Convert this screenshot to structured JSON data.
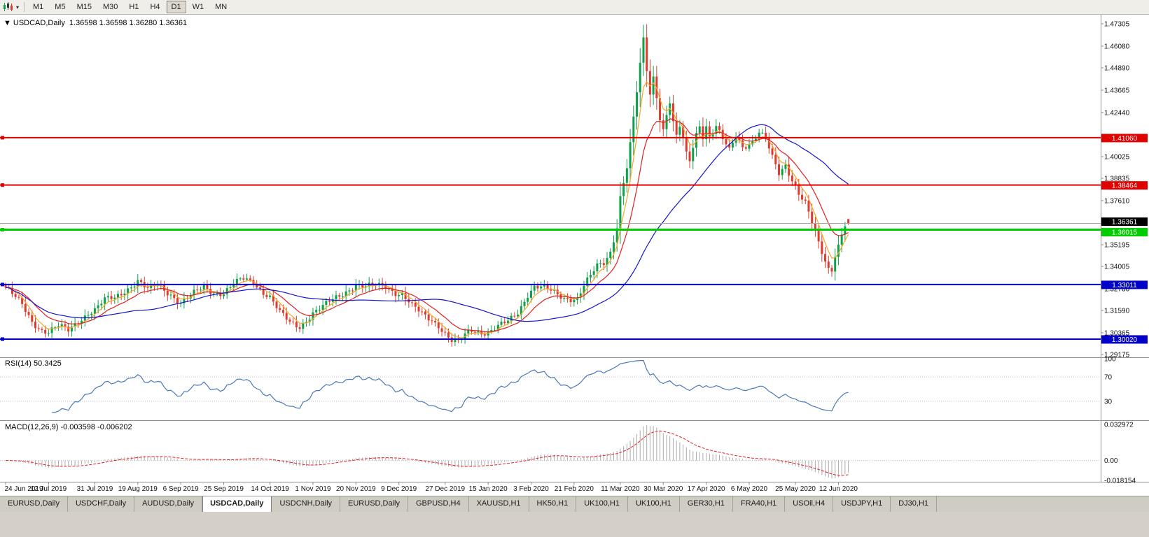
{
  "toolbar": {
    "chart_icon": "candlestick-chart-icon",
    "dropdown_icon": "chevron-down-icon",
    "timeframes": [
      "M1",
      "M5",
      "M15",
      "M30",
      "H1",
      "H4",
      "D1",
      "W1",
      "MN"
    ],
    "active_timeframe": "D1"
  },
  "chart": {
    "collapse_glyph": "▼",
    "symbol_title": "USDCAD,Daily",
    "ohlc_text": "1.36598 1.36598 1.36280 1.36361"
  },
  "price_axis": {
    "ticks": [
      "1.47305",
      "1.46080",
      "1.44890",
      "1.43665",
      "1.42440",
      "1.40025",
      "1.38835",
      "1.37610",
      "1.35195",
      "1.34005",
      "1.32780",
      "1.31590",
      "1.30365",
      "1.29175"
    ]
  },
  "rsi_panel": {
    "label": "RSI(14) 50.3425",
    "levels": [
      {
        "label": "100",
        "value": 100,
        "dotted": false
      },
      {
        "label": "70",
        "value": 70,
        "dotted": true
      },
      {
        "label": "30",
        "value": 30,
        "dotted": true
      }
    ]
  },
  "macd_panel": {
    "label": "MACD(12,26,9) -0.003598 -0.006202",
    "axis": [
      {
        "label": "0.032972",
        "value": 0.032972
      },
      {
        "label": "0.00",
        "value": 0.0
      },
      {
        "label": "-0.018154",
        "value": -0.018154
      }
    ]
  },
  "date_axis": {
    "labels": [
      "24 Jun 2019",
      "12 Jul 2019",
      "31 Jul 2019",
      "19 Aug 2019",
      "6 Sep 2019",
      "25 Sep 2019",
      "14 Oct 2019",
      "1 Nov 2019",
      "20 Nov 2019",
      "9 Dec 2019",
      "27 Dec 2019",
      "15 Jan 2020",
      "3 Feb 2020",
      "21 Feb 2020",
      "11 Mar 2020",
      "30 Mar 2020",
      "17 Apr 2020",
      "6 May 2020",
      "25 May 2020",
      "12 Jun 2020"
    ]
  },
  "tabs": {
    "items": [
      "EURUSD,Daily",
      "USDCHF,Daily",
      "AUDUSD,Daily",
      "USDCAD,Daily",
      "USDCNH,Daily",
      "EURUSD,Daily",
      "GBPUSD,H4",
      "XAUUSD,H1",
      "HK50,H1",
      "UK100,H1",
      "UK100,H1",
      "GER30,H1",
      "FRA40,H1",
      "USOil,H4",
      "USDJPY,H1",
      "DJ30,H1"
    ],
    "active_index": 3
  },
  "colors": {
    "up": "#0FA04A",
    "down": "#E03A2F",
    "bid_line": "#A8A8A8",
    "axis_line": "#909090",
    "dotted_level": "#BDBDBD",
    "ma_fast": "#F5A623",
    "ma_medium": "#E02020",
    "ma_slow": "#1414CC",
    "rsi_line": "#4878B8",
    "macd_hist": "#ABABAB",
    "macd_signal": "#E02020"
  },
  "chart_data": {
    "type": "candlestick",
    "symbol": "USDCAD",
    "timeframe": "Daily",
    "current_ohlc": {
      "open": 1.36598,
      "high": 1.36598,
      "low": 1.3628,
      "close": 1.36361
    },
    "current_price": {
      "value": 1.36361,
      "label": "1.36361",
      "badge_color": "#000000"
    },
    "y_range": [
      1.29175,
      1.47305
    ],
    "num_candles": 256,
    "x_labels": [
      "24 Jun 2019",
      "12 Jul 2019",
      "31 Jul 2019",
      "19 Aug 2019",
      "6 Sep 2019",
      "25 Sep 2019",
      "14 Oct 2019",
      "1 Nov 2019",
      "20 Nov 2019",
      "9 Dec 2019",
      "27 Dec 2019",
      "15 Jan 2020",
      "3 Feb 2020",
      "21 Feb 2020",
      "11 Mar 2020",
      "30 Mar 2020",
      "17 Apr 2020",
      "6 May 2020",
      "25 May 2020",
      "12 Jun 2020"
    ],
    "close_waypoints": [
      [
        0,
        1.3285
      ],
      [
        2,
        1.3245
      ],
      [
        5,
        1.3185
      ],
      [
        8,
        1.31
      ],
      [
        11,
        1.3055
      ],
      [
        13,
        1.3042
      ],
      [
        16,
        1.3068
      ],
      [
        19,
        1.3048
      ],
      [
        22,
        1.3105
      ],
      [
        25,
        1.3148
      ],
      [
        27,
        1.316
      ],
      [
        30,
        1.3212
      ],
      [
        33,
        1.3228
      ],
      [
        36,
        1.3272
      ],
      [
        40,
        1.332
      ],
      [
        43,
        1.3268
      ],
      [
        46,
        1.33
      ],
      [
        50,
        1.3252
      ],
      [
        53,
        1.32
      ],
      [
        56,
        1.3235
      ],
      [
        60,
        1.3288
      ],
      [
        63,
        1.3262
      ],
      [
        66,
        1.3255
      ],
      [
        69,
        1.3298
      ],
      [
        72,
        1.333
      ],
      [
        75,
        1.3318
      ],
      [
        78,
        1.3262
      ],
      [
        80,
        1.3232
      ],
      [
        83,
        1.3142
      ],
      [
        86,
        1.3092
      ],
      [
        89,
        1.3075
      ],
      [
        93,
        1.3145
      ],
      [
        96,
        1.3175
      ],
      [
        100,
        1.323
      ],
      [
        103,
        1.3268
      ],
      [
        106,
        1.33
      ],
      [
        109,
        1.3282
      ],
      [
        112,
        1.3295
      ],
      [
        115,
        1.3298
      ],
      [
        118,
        1.326
      ],
      [
        120,
        1.3245
      ],
      [
        123,
        1.3178
      ],
      [
        126,
        1.314
      ],
      [
        129,
        1.3112
      ],
      [
        131,
        1.3082
      ],
      [
        133,
        1.3032
      ],
      [
        135,
        1.2988
      ],
      [
        137,
        1.2978
      ],
      [
        139,
        1.3022
      ],
      [
        141,
        1.3055
      ],
      [
        144,
        1.3045
      ],
      [
        146,
        1.304
      ],
      [
        149,
        1.3065
      ],
      [
        152,
        1.3095
      ],
      [
        155,
        1.3152
      ],
      [
        158,
        1.3252
      ],
      [
        160,
        1.329
      ],
      [
        163,
        1.3278
      ],
      [
        166,
        1.3255
      ],
      [
        169,
        1.3232
      ],
      [
        173,
        1.3225
      ],
      [
        175,
        1.3292
      ],
      [
        177,
        1.3342
      ],
      [
        179,
        1.34
      ],
      [
        181,
        1.3422
      ],
      [
        183,
        1.3485
      ],
      [
        185,
        1.3625
      ],
      [
        186,
        1.3782
      ],
      [
        187,
        1.3862
      ],
      [
        188,
        1.3942
      ],
      [
        189,
        1.4062
      ],
      [
        190,
        1.4205
      ],
      [
        191,
        1.4352
      ],
      [
        192,
        1.4502
      ],
      [
        193,
        1.4642
      ],
      [
        194,
        1.4482
      ],
      [
        195,
        1.4352
      ],
      [
        196,
        1.4442
      ],
      [
        197,
        1.4342
      ],
      [
        198,
        1.4222
      ],
      [
        199,
        1.4152
      ],
      [
        200,
        1.4232
      ],
      [
        201,
        1.4302
      ],
      [
        202,
        1.4182
      ],
      [
        203,
        1.4102
      ],
      [
        204,
        1.4162
      ],
      [
        205,
        1.4092
      ],
      [
        206,
        1.4012
      ],
      [
        207,
        1.3982
      ],
      [
        208,
        1.4062
      ],
      [
        209,
        1.4132
      ],
      [
        210,
        1.4182
      ],
      [
        211,
        1.4122
      ],
      [
        212,
        1.4172
      ],
      [
        213,
        1.4112
      ],
      [
        215,
        1.4162
      ],
      [
        217,
        1.4092
      ],
      [
        219,
        1.4032
      ],
      [
        221,
        1.4122
      ],
      [
        223,
        1.4062
      ],
      [
        226,
        1.4088
      ],
      [
        228,
        1.4132
      ],
      [
        230,
        1.4092
      ],
      [
        232,
        1.3992
      ],
      [
        234,
        1.3912
      ],
      [
        236,
        1.3962
      ],
      [
        238,
        1.3882
      ],
      [
        240,
        1.3802
      ],
      [
        242,
        1.3742
      ],
      [
        244,
        1.3632
      ],
      [
        246,
        1.3522
      ],
      [
        248,
        1.3432
      ],
      [
        249,
        1.3392
      ],
      [
        250,
        1.3372
      ],
      [
        251,
        1.3452
      ],
      [
        252,
        1.352
      ],
      [
        253,
        1.3575
      ],
      [
        254,
        1.362
      ],
      [
        255,
        1.36361
      ]
    ],
    "moving_averages": [
      {
        "name": "ma-fast",
        "type": "ema",
        "period": 5,
        "color_key": "ma_fast"
      },
      {
        "name": "ma-medium",
        "type": "ema",
        "period": 13,
        "color_key": "ma_medium"
      },
      {
        "name": "ma-slow",
        "type": "sma",
        "period": 40,
        "color_key": "ma_slow"
      }
    ],
    "rsi": {
      "period": 14,
      "current": 50.3425
    },
    "macd": {
      "fast": 12,
      "slow": 26,
      "signal": 9,
      "current_main": -0.003598,
      "current_signal": -0.006202
    },
    "horizontal_lines": [
      {
        "value": 1.4106,
        "label": "1.41060",
        "color": "#E00000",
        "width": 2
      },
      {
        "value": 1.38464,
        "label": "1.38464",
        "color": "#E00000",
        "width": 2
      },
      {
        "value": 1.36015,
        "label": "1.36015",
        "color": "#00CC00",
        "width": 3
      },
      {
        "value": 1.33011,
        "label": "1.33011",
        "color": "#0000C8",
        "width": 2
      },
      {
        "value": 1.3002,
        "label": "1.30020",
        "color": "#0000C8",
        "width": 2
      }
    ]
  }
}
